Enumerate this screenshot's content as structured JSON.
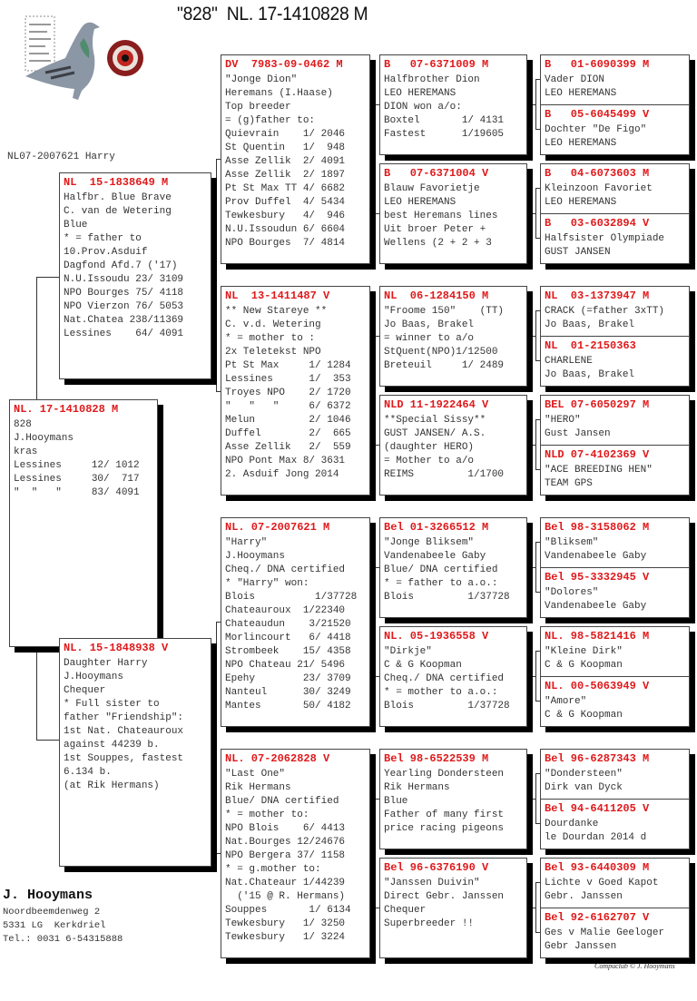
{
  "title": "\"828\"  NL. 17-1410828 M",
  "note": "NL07-2007621 Harry",
  "colors": {
    "header_red": "#e0191b",
    "text": "#333333",
    "shadow": "#000000"
  },
  "logo": {
    "icon": "pigeon-photo-with-eye"
  },
  "pedigree": {
    "subject": {
      "header": "NL. 17-1410828 M",
      "lines": [
        "828",
        "J.Hooymans",
        "kras",
        "Lessines     12/ 1012",
        "Lessines     30/  717",
        "\"  \"   \"     83/ 4091"
      ]
    },
    "father": {
      "header": "NL  15-1838649 M",
      "lines": [
        "Halfbr. Blue Brave",
        "C. van de Wetering",
        "Blue",
        "* = father to",
        "10.Prov.Asduif",
        "Dagfond Afd.7 ('17)",
        "N.U.Issoudu 23/ 3109",
        "NPO Bourges 75/ 4118",
        "NPO Vierzon 76/ 5053",
        "Nat.Chatea 238/11369",
        "Lessines    64/ 4091"
      ]
    },
    "mother": {
      "header": "NL. 15-1848938 V",
      "lines": [
        "Daughter Harry",
        "J.Hooymans",
        "Chequer",
        "* Full sister to",
        "father \"Friendship\":",
        "1st Nat. Chateauroux",
        "against 44239 b.",
        "1st Souppes, fastest",
        "6.134 b.",
        "(at Rik Hermans)"
      ]
    },
    "gen3": [
      {
        "header": "DV  7983-09-0462 M",
        "lines": [
          "\"Jonge Dion\"",
          "Heremans (I.Haase)",
          "Top breeder",
          "= (g)father to:",
          "Quievrain    1/ 2046",
          "St Quentin   1/  948",
          "Asse Zellik  2/ 4091",
          "Asse Zellik  2/ 1897",
          "Pt St Max TT 4/ 6682",
          "Prov Duffel  4/ 5434",
          "Tewkesbury   4/  946",
          "N.U.Issoudun 6/ 6604",
          "NPO Bourges  7/ 4814"
        ]
      },
      {
        "header": "NL  13-1411487 V",
        "lines": [
          "** New Stareye **",
          "C. v.d. Wetering",
          "* = mother to :",
          "2x Teletekst NPO",
          "Pt St Max     1/ 1284",
          "Lessines      1/  353",
          "Troyes NPO    2/ 1720",
          "\"   \"   \"     6/ 6372",
          "Melun         2/ 1046",
          "Duffel        2/  665",
          "Asse Zellik   2/  559",
          "NPO Pont Max 8/ 3631",
          "2. Asduif Jong 2014"
        ]
      },
      {
        "header": "NL. 07-2007621 M",
        "lines": [
          "\"Harry\"",
          "J.Hooymans",
          "Cheq./ DNA certified",
          "* \"Harry\" won:",
          "Blois          1/37728",
          "Chateauroux  1/22340",
          "Chateaudun    3/21520",
          "Morlincourt   6/ 4418",
          "Strombeek    15/ 4358",
          "NPO Chateau 21/ 5496",
          "Epehy        23/ 3709",
          "Nanteul      30/ 3249",
          "Mantes       50/ 4182"
        ]
      },
      {
        "header": "NL. 07-2062828 V",
        "lines": [
          "\"Last One\"",
          "Rik Hermans",
          "Blue/ DNA certified",
          "* = mother to:",
          "NPO Blois    6/ 4413",
          "Nat.Bourges 12/24676",
          "NPO Bergera 37/ 1158",
          "* = g.mother to:",
          "Nat.Chateaur 1/44239",
          "  ('15 @ R. Hermans)",
          "Souppes       1/ 6134",
          "Tewkesbury   1/ 3250",
          "Tewkesbury   1/ 3224"
        ]
      }
    ],
    "gen4": [
      {
        "header": "B   07-6371009 M",
        "lines": [
          "Halfbrother Dion",
          "LEO HEREMANS",
          "DION won a/o:",
          "Boxtel       1/ 4131",
          "Fastest      1/19605"
        ]
      },
      {
        "header": "B   07-6371004 V",
        "lines": [
          "Blauw Favorietje",
          "LEO HEREMANS",
          "best Heremans lines",
          "Uit broer Peter +",
          "Wellens (2 + 2 + 3"
        ]
      },
      {
        "header": "NL  06-1284150 M",
        "lines": [
          "\"Froome 150\"    (TT)",
          "Jo Baas, Brakel",
          "= winner to a/o",
          "StQuent(NPO)1/12500",
          "Breteuil     1/ 2489"
        ]
      },
      {
        "header": "NLD 11-1922464 V",
        "lines": [
          "**Special Sissy**",
          "GUST JANSEN/ A.S.",
          "(daughter HERO)",
          "= Mother to a/o",
          "REIMS         1/1700"
        ]
      },
      {
        "header": "Bel 01-3266512 M",
        "lines": [
          "\"Jonge Bliksem\"",
          "Vandenabeele Gaby",
          "Blue/ DNA certified",
          "* = father to a.o.:",
          "Blois         1/37728"
        ]
      },
      {
        "header": "NL. 05-1936558 V",
        "lines": [
          "\"Dirkje\"",
          "C & G Koopman",
          "Cheq./ DNA certified",
          "* = mother to a.o.:",
          "Blois         1/37728"
        ]
      },
      {
        "header": "Bel 98-6522539 M",
        "lines": [
          "Yearling Dondersteen",
          "Rik Hermans",
          "Blue",
          "Father of many first",
          "price racing pigeons"
        ]
      },
      {
        "header": "Bel 96-6376190 V",
        "lines": [
          "\"Janssen Duivin\"",
          "Direct Gebr. Janssen",
          "Chequer",
          "Superbreeder !!"
        ]
      }
    ],
    "gen5": [
      {
        "header": "B   01-6090399 M",
        "lines": [
          "Vader DION",
          "LEO HEREMANS"
        ]
      },
      {
        "header": "B   05-6045499 V",
        "lines": [
          "Dochter \"De Figo\"",
          "LEO HEREMANS"
        ]
      },
      {
        "header": "B   04-6073603 M",
        "lines": [
          "Kleinzoon Favoriet",
          "LEO HEREMANS"
        ]
      },
      {
        "header": "B   03-6032894 V",
        "lines": [
          "Halfsister Olympiade",
          "GUST JANSEN"
        ]
      },
      {
        "header": "NL  03-1373947 M",
        "lines": [
          "CRACK (=father 3xTT)",
          "Jo Baas, Brakel"
        ]
      },
      {
        "header": "NL  01-2150363",
        "lines": [
          "CHARLENE",
          "Jo Baas, Brakel"
        ]
      },
      {
        "header": "BEL 07-6050297 M",
        "lines": [
          "\"HERO\"",
          "Gust Jansen"
        ]
      },
      {
        "header": "NLD 07-4102369 V",
        "lines": [
          "\"ACE BREEDING HEN\"",
          "TEAM GPS"
        ]
      },
      {
        "header": "Bel 98-3158062 M",
        "lines": [
          "\"Bliksem\"",
          "Vandenabeele Gaby"
        ]
      },
      {
        "header": "Bel 95-3332945 V",
        "lines": [
          "\"Dolores\"",
          "Vandenabeele Gaby"
        ]
      },
      {
        "header": "NL. 98-5821416 M",
        "lines": [
          "\"Kleine Dirk\"",
          "C & G Koopman"
        ]
      },
      {
        "header": "NL. 00-5063949 V",
        "lines": [
          "\"Amore\"",
          "C & G Koopman"
        ]
      },
      {
        "header": "Bel 96-6287343 M",
        "lines": [
          "\"Dondersteen\"",
          "Dirk van Dyck"
        ]
      },
      {
        "header": "Bel 94-6411205 V",
        "lines": [
          "Dourdanke",
          "le Dourdan 2014 d"
        ]
      },
      {
        "header": "Bel 93-6440309 M",
        "lines": [
          "Lichte v Goed Kapot",
          "Gebr. Janssen"
        ]
      },
      {
        "header": "Bel 92-6162707 V",
        "lines": [
          "Ges v Malie Geeloger",
          "Gebr Janssen"
        ]
      }
    ]
  },
  "footer": {
    "name": "J. Hooymans",
    "address": [
      "Noordbeemdenweg 2",
      "5331 LG  Kerkdriel",
      "Tel.: 0031 6-54315888"
    ],
    "credit": "Compuclub © J. Hooymans"
  }
}
